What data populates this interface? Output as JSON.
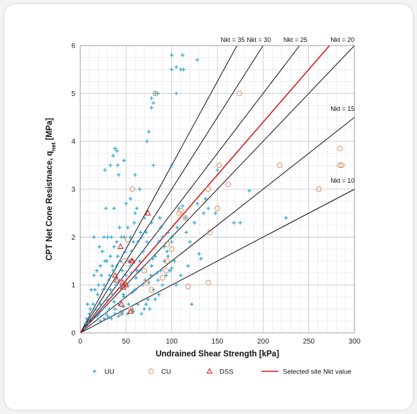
{
  "chart_data": {
    "type": "scatter",
    "xlabel": "Undrained Shear Strength [kPa]",
    "ylabel": "CPT Net Cone Resistnace, q",
    "ylabel_sub": "net",
    "ylabel_unit": " [MPa]",
    "xlim": [
      0,
      300
    ],
    "ylim": [
      0,
      6
    ],
    "xticks": [
      "0",
      "50",
      "100",
      "150",
      "200",
      "250",
      "300"
    ],
    "yticks": [
      "0",
      "1",
      "2",
      "3",
      "4",
      "5",
      "6"
    ],
    "grid": true,
    "legend_position": "bottom",
    "colors": {
      "UU": "#2aa3d4",
      "CU": "#d8956b",
      "DSS": "#d72c2c",
      "nkt_lines": "#111111",
      "selected": "#d21f1f"
    },
    "nkt_lines": [
      {
        "nkt": 10,
        "label": "Nkt = 10"
      },
      {
        "nkt": 15,
        "label": "Nkt = 15"
      },
      {
        "nkt": 20,
        "label": "Nkt = 20"
      },
      {
        "nkt": 25,
        "label": "Nkt = 25"
      },
      {
        "nkt": 30,
        "label": "Nkt = 30"
      },
      {
        "nkt": 35,
        "label": "Nkt = 35"
      }
    ],
    "selected_nkt": 22,
    "legend": [
      {
        "key": "UU",
        "label": "UU",
        "marker": "plus"
      },
      {
        "key": "CU",
        "label": "CU",
        "marker": "circle"
      },
      {
        "key": "DSS",
        "label": "DSS",
        "marker": "triangle"
      },
      {
        "key": "selected",
        "label": "Selected site Nkt value",
        "marker": "line"
      }
    ],
    "series": [
      {
        "name": "UU",
        "marker": "plus",
        "points": [
          [
            100,
            5.8
          ],
          [
            112,
            5.8
          ],
          [
            105,
            5.55
          ],
          [
            100,
            5.5
          ],
          [
            110,
            5.5
          ],
          [
            113,
            5.5
          ],
          [
            128,
            5.7
          ],
          [
            78,
            4.9
          ],
          [
            82,
            5.0
          ],
          [
            85,
            5.0
          ],
          [
            105,
            5.0
          ],
          [
            80,
            4.8
          ],
          [
            78,
            4.7
          ],
          [
            75,
            4.2
          ],
          [
            73,
            4.0
          ],
          [
            38,
            3.85
          ],
          [
            40,
            3.8
          ],
          [
            36,
            3.7
          ],
          [
            41,
            3.5
          ],
          [
            42,
            3.3
          ],
          [
            27,
            3.4
          ],
          [
            33,
            3.5
          ],
          [
            48,
            3.6
          ],
          [
            100,
            3.5
          ],
          [
            80,
            3.5
          ],
          [
            150,
            3.4
          ],
          [
            185,
            2.97
          ],
          [
            225,
            2.4
          ],
          [
            175,
            2.3
          ],
          [
            168,
            2.3
          ],
          [
            60,
            3.3
          ],
          [
            55,
            2.8
          ],
          [
            65,
            3.0
          ],
          [
            62,
            2.6
          ],
          [
            37,
            2.6
          ],
          [
            28,
            2.6
          ],
          [
            50,
            2.7
          ],
          [
            52,
            2.2
          ],
          [
            72,
            2.1
          ],
          [
            87,
            2.4
          ],
          [
            90,
            2.0
          ],
          [
            96,
            2.1
          ],
          [
            100,
            2.0
          ],
          [
            108,
            2.6
          ],
          [
            112,
            2.65
          ],
          [
            125,
            2.3
          ],
          [
            135,
            2.5
          ],
          [
            140,
            2.6
          ],
          [
            148,
            2.5
          ],
          [
            137,
            2.8
          ],
          [
            128,
            2.7
          ],
          [
            115,
            2.4
          ],
          [
            120,
            1.9
          ],
          [
            130,
            1.65
          ],
          [
            132,
            1.55
          ],
          [
            122,
            0.6
          ],
          [
            118,
            1.4
          ],
          [
            110,
            1.2
          ],
          [
            105,
            1.0
          ],
          [
            98,
            1.3
          ],
          [
            95,
            1.7
          ],
          [
            92,
            1.5
          ],
          [
            88,
            1.3
          ],
          [
            85,
            1.1
          ],
          [
            80,
            0.9
          ],
          [
            77,
            1.2
          ],
          [
            74,
            0.7
          ],
          [
            70,
            0.5
          ],
          [
            68,
            1.0
          ],
          [
            65,
            1.5
          ],
          [
            62,
            1.3
          ],
          [
            60,
            0.9
          ],
          [
            58,
            1.9
          ],
          [
            57,
            0.5
          ],
          [
            55,
            1.4
          ],
          [
            53,
            0.6
          ],
          [
            50,
            1.2
          ],
          [
            48,
            2.0
          ],
          [
            47,
            0.8
          ],
          [
            45,
            0.4
          ],
          [
            44,
            1.5
          ],
          [
            42,
            0.6
          ],
          [
            40,
            1.9
          ],
          [
            39,
            1.0
          ],
          [
            38,
            0.5
          ],
          [
            36,
            1.3
          ],
          [
            35,
            0.8
          ],
          [
            34,
            2.0
          ],
          [
            33,
            1.6
          ],
          [
            32,
            0.5
          ],
          [
            31,
            1.1
          ],
          [
            30,
            2.0
          ],
          [
            29,
            0.7
          ],
          [
            28,
            0.4
          ],
          [
            27,
            1.5
          ],
          [
            26,
            2.0
          ],
          [
            25,
            0.9
          ],
          [
            24,
            0.5
          ],
          [
            23,
            1.2
          ],
          [
            22,
            0.6
          ],
          [
            21,
            1.8
          ],
          [
            20,
            0.4
          ],
          [
            19,
            0.8
          ],
          [
            18,
            1.3
          ],
          [
            17,
            0.5
          ],
          [
            16,
            0.9
          ],
          [
            15,
            2.0
          ],
          [
            14,
            0.6
          ],
          [
            13,
            0.3
          ],
          [
            12,
            0.9
          ],
          [
            11,
            0.5
          ],
          [
            10,
            0.4
          ],
          [
            9,
            0.2
          ],
          [
            8,
            0.6
          ],
          [
            7,
            0.3
          ],
          [
            6,
            0.2
          ],
          [
            5,
            0.1
          ],
          [
            15,
            1.2
          ],
          [
            18,
            0.35
          ],
          [
            22,
            0.25
          ],
          [
            26,
            0.3
          ],
          [
            30,
            0.35
          ],
          [
            34,
            0.3
          ],
          [
            38,
            0.4
          ],
          [
            42,
            0.35
          ],
          [
            46,
            0.45
          ],
          [
            52,
            0.4
          ],
          [
            58,
            0.45
          ],
          [
            63,
            0.6
          ],
          [
            67,
            0.4
          ],
          [
            72,
            0.6
          ],
          [
            76,
            0.5
          ],
          [
            82,
            0.7
          ],
          [
            86,
            0.8
          ],
          [
            90,
            1.0
          ],
          [
            94,
            1.2
          ],
          [
            100,
            1.35
          ],
          [
            103,
            1.5
          ],
          [
            86,
            1.9
          ],
          [
            82,
            1.6
          ],
          [
            78,
            1.4
          ],
          [
            73,
            1.9
          ],
          [
            69,
            1.7
          ],
          [
            66,
            2.1
          ],
          [
            63,
            1.9
          ],
          [
            59,
            2.3
          ],
          [
            56,
            1.7
          ],
          [
            53,
            1.5
          ],
          [
            49,
            1.7
          ],
          [
            46,
            1.3
          ],
          [
            43,
            1.1
          ],
          [
            41,
            1.6
          ],
          [
            37,
            1.8
          ],
          [
            35,
            1.4
          ],
          [
            32,
            1.2
          ],
          [
            29,
            1.5
          ],
          [
            26,
            1.0
          ],
          [
            24,
            1.7
          ],
          [
            22,
            1.4
          ],
          [
            20,
            1.0
          ],
          [
            45,
            2.0
          ],
          [
            55,
            2.0
          ],
          [
            67,
            2.0
          ],
          [
            43,
            2.2
          ],
          [
            60,
            2.5
          ],
          [
            70,
            2.4
          ],
          [
            78,
            2.3
          ],
          [
            88,
            2.2
          ],
          [
            92,
            1.8
          ],
          [
            96,
            1.6
          ],
          [
            100,
            1.9
          ],
          [
            106,
            2.2
          ],
          [
            116,
            2.1
          ],
          [
            40,
            1.4
          ],
          [
            44,
            0.95
          ],
          [
            48,
            0.75
          ],
          [
            52,
            1.0
          ],
          [
            56,
            1.25
          ],
          [
            61,
            1.15
          ],
          [
            65,
            1.3
          ],
          [
            71,
            1.1
          ],
          [
            75,
            1.05
          ],
          [
            79,
            1.55
          ],
          [
            84,
            1.25
          ],
          [
            57,
            0.85
          ],
          [
            47,
            0.55
          ],
          [
            33,
            0.9
          ],
          [
            37,
            0.65
          ]
        ]
      },
      {
        "name": "CU",
        "marker": "circle",
        "points": [
          [
            82,
            5.0
          ],
          [
            174,
            5.0
          ],
          [
            57,
            3.0
          ],
          [
            152,
            3.5
          ],
          [
            162,
            3.1
          ],
          [
            218,
            3.5
          ],
          [
            261,
            3.0
          ],
          [
            284,
            3.85
          ],
          [
            284,
            3.5
          ],
          [
            286,
            3.5
          ],
          [
            140,
            3.0
          ],
          [
            150,
            2.6
          ],
          [
            110,
            2.55
          ],
          [
            108,
            2.5
          ],
          [
            142,
            2.1
          ],
          [
            115,
            2.4
          ],
          [
            95,
            1.85
          ],
          [
            100,
            1.75
          ],
          [
            95,
            1.5
          ],
          [
            94,
            1.3
          ],
          [
            90,
            1.15
          ],
          [
            140,
            1.05
          ],
          [
            118,
            0.97
          ],
          [
            78,
            0.9
          ],
          [
            73,
            1.05
          ],
          [
            70,
            1.3
          ],
          [
            48,
            1.5
          ],
          [
            48,
            1.0
          ],
          [
            45,
            0.42
          ],
          [
            55,
            0.5
          ],
          [
            52,
            1.95
          ]
        ]
      },
      {
        "name": "DSS",
        "marker": "triangle",
        "points": [
          [
            74,
            2.5
          ],
          [
            44,
            1.8
          ],
          [
            56,
            1.5
          ],
          [
            57,
            1.5
          ],
          [
            38,
            1.2
          ],
          [
            40,
            1.1
          ],
          [
            46,
            1.05
          ],
          [
            50,
            1.0
          ],
          [
            47,
            0.95
          ],
          [
            45,
            0.6
          ],
          [
            55,
            0.45
          ]
        ]
      }
    ]
  }
}
